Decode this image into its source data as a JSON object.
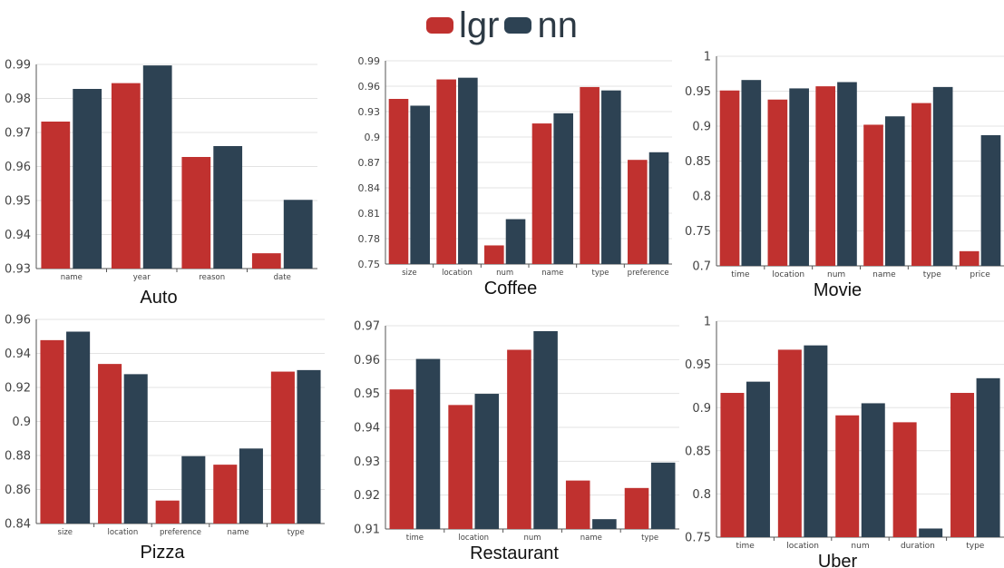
{
  "legend": {
    "items": [
      {
        "label": "lgr",
        "color": "#c0312f"
      },
      {
        "label": "nn",
        "color": "#2d4253"
      }
    ]
  },
  "chart_data": [
    {
      "type": "bar",
      "title": "Auto",
      "categories": [
        "name",
        "year",
        "reason",
        "date"
      ],
      "ylim": [
        0.93,
        0.99
      ],
      "yticks": [
        "0.93",
        "0.94",
        "0.95",
        "0.96",
        "0.97",
        "0.98",
        "0.99"
      ],
      "series": [
        {
          "name": "lgr",
          "values": [
            0.9732,
            0.9845,
            0.9628,
            0.9345
          ]
        },
        {
          "name": "nn",
          "values": [
            0.9828,
            0.9897,
            0.966,
            0.9502
          ]
        }
      ],
      "grid": true
    },
    {
      "type": "bar",
      "title": "Coffee",
      "categories": [
        "size",
        "location",
        "num",
        "name",
        "type",
        "preference"
      ],
      "ylim": [
        0.75,
        0.99
      ],
      "yticks": [
        "0.75",
        "0.78",
        "0.81",
        "0.84",
        "0.87",
        "0.9",
        "0.93",
        "0.96",
        "0.99"
      ],
      "series": [
        {
          "name": "lgr",
          "values": [
            0.945,
            0.968,
            0.772,
            0.916,
            0.959,
            0.873
          ]
        },
        {
          "name": "nn",
          "values": [
            0.937,
            0.97,
            0.803,
            0.928,
            0.955,
            0.882
          ]
        }
      ],
      "grid": true
    },
    {
      "type": "bar",
      "title": "Movie",
      "categories": [
        "time",
        "location",
        "num",
        "name",
        "type",
        "price"
      ],
      "ylim": [
        0.7,
        1.0
      ],
      "yticks": [
        "0.7",
        "0.75",
        "0.8",
        "0.85",
        "0.9",
        "0.95",
        "1"
      ],
      "series": [
        {
          "name": "lgr",
          "values": [
            0.951,
            0.938,
            0.957,
            0.902,
            0.933,
            0.721
          ]
        },
        {
          "name": "nn",
          "values": [
            0.966,
            0.954,
            0.963,
            0.914,
            0.956,
            0.887
          ]
        }
      ],
      "grid": true
    },
    {
      "type": "bar",
      "title": "Pizza",
      "categories": [
        "size",
        "location",
        "preference",
        "name",
        "type"
      ],
      "ylim": [
        0.84,
        0.96
      ],
      "yticks": [
        "0.84",
        "0.86",
        "0.88",
        "0.9",
        "0.92",
        "0.94",
        "0.96"
      ],
      "series": [
        {
          "name": "lgr",
          "values": [
            0.9478,
            0.9338,
            0.8535,
            0.8746,
            0.9293
          ]
        },
        {
          "name": "nn",
          "values": [
            0.9528,
            0.9278,
            0.8796,
            0.8841,
            0.9302
          ]
        }
      ],
      "grid": true
    },
    {
      "type": "bar",
      "title": "Restaurant",
      "categories": [
        "time",
        "location",
        "num",
        "name",
        "type"
      ],
      "ylim": [
        0.91,
        0.97
      ],
      "yticks": [
        "0.91",
        "0.92",
        "0.93",
        "0.94",
        "0.95",
        "0.96",
        "0.97"
      ],
      "series": [
        {
          "name": "lgr",
          "values": [
            0.9512,
            0.9466,
            0.9629,
            0.9243,
            0.9221
          ]
        },
        {
          "name": "nn",
          "values": [
            0.9602,
            0.9499,
            0.9684,
            0.9129,
            0.9296
          ]
        }
      ],
      "grid": true
    },
    {
      "type": "bar",
      "title": "Uber",
      "categories": [
        "time",
        "location",
        "num",
        "duration",
        "type"
      ],
      "ylim": [
        0.75,
        1.0
      ],
      "yticks": [
        "0.75",
        "0.8",
        "0.85",
        "0.9",
        "0.95",
        "1"
      ],
      "series": [
        {
          "name": "lgr",
          "values": [
            0.917,
            0.967,
            0.891,
            0.883,
            0.917
          ]
        },
        {
          "name": "nn",
          "values": [
            0.93,
            0.972,
            0.905,
            0.76,
            0.934
          ]
        }
      ],
      "grid": true
    }
  ]
}
